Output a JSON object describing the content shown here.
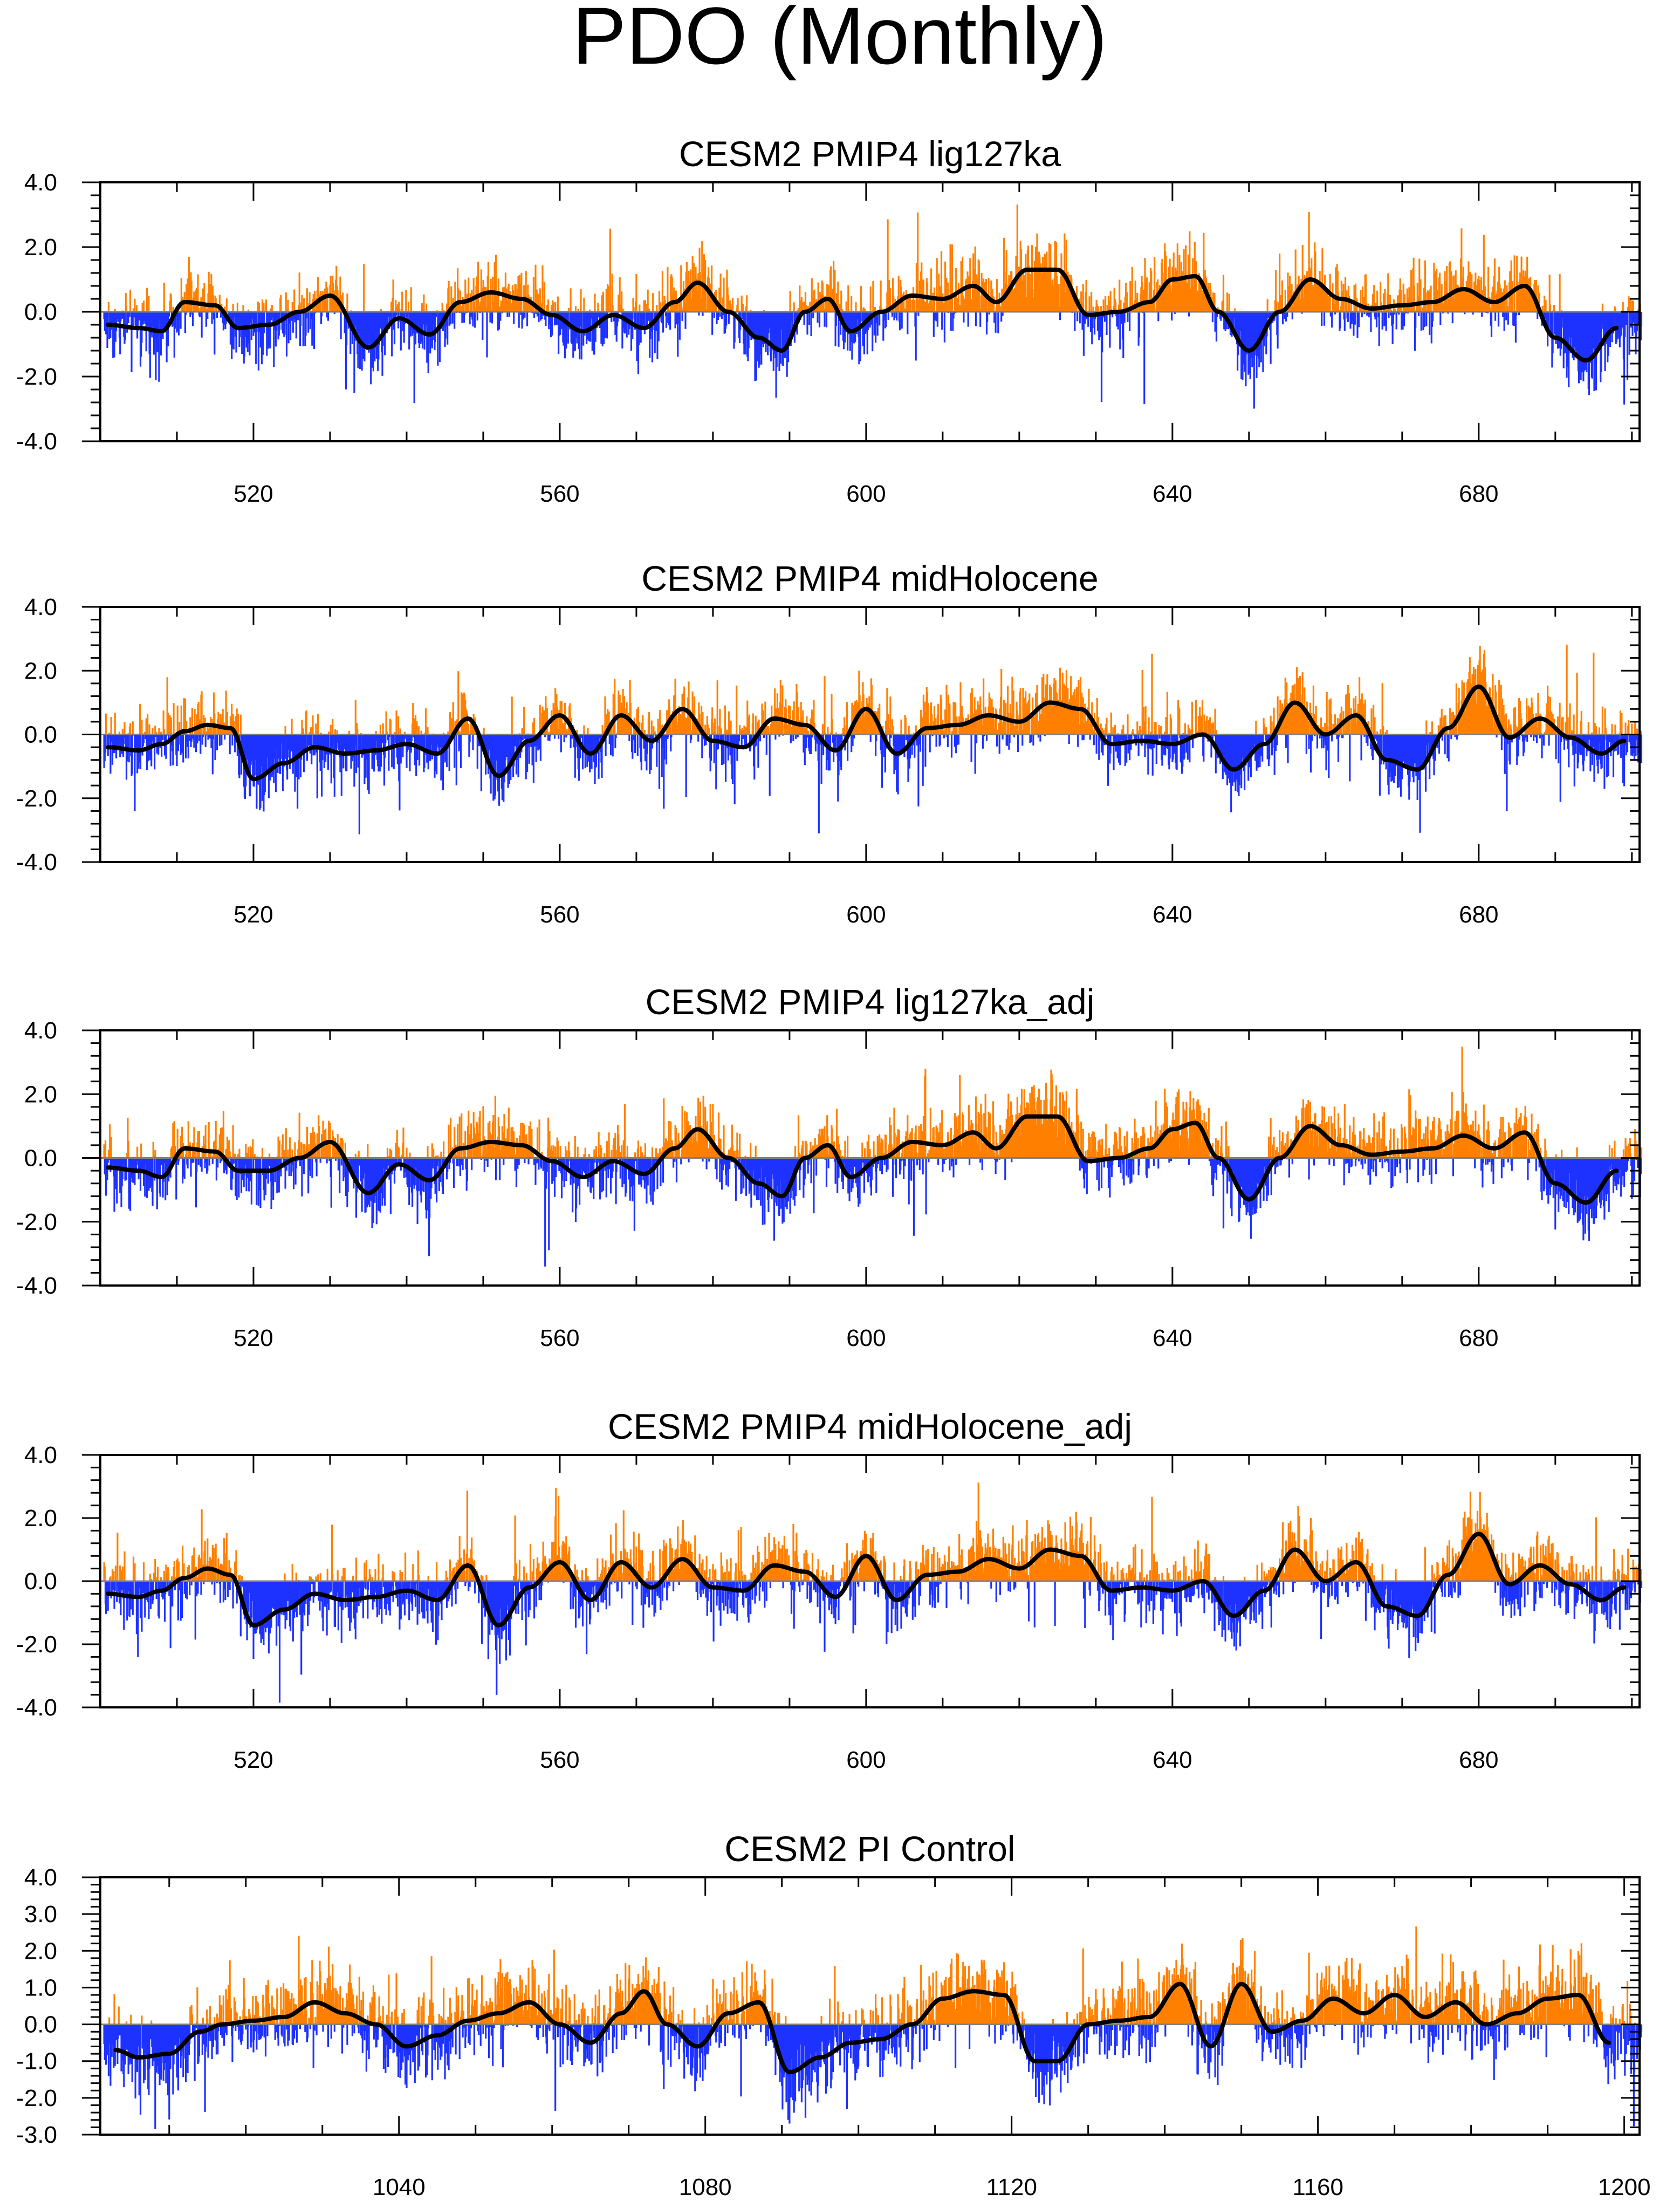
{
  "title": "PDO (Monthly)",
  "colors": {
    "positive": "#ff8000",
    "negative": "#1e32ff",
    "smooth": "#000000",
    "zero": "#808080"
  },
  "chart_data": [
    {
      "type": "bar",
      "title": "CESM2 PMIP4 lig127ka",
      "xlim": [
        500,
        701
      ],
      "ylim": [
        -4.0,
        4.0
      ],
      "yticks": [
        -4.0,
        -2.0,
        0.0,
        2.0,
        4.0
      ],
      "ytick_labels": [
        "-4.0",
        "-2.0",
        "0.0",
        "2.0",
        "4.0"
      ],
      "xticks": [
        520,
        560,
        600,
        640,
        680
      ],
      "xtick_labels": [
        "520",
        "560",
        "600",
        "640",
        "680"
      ],
      "smoothed_x": [
        501,
        505,
        508,
        511,
        515,
        518,
        522,
        526,
        530,
        535,
        539,
        543,
        547,
        551,
        555,
        559,
        563,
        567,
        571,
        575,
        578,
        582,
        586,
        589,
        592,
        595,
        598,
        602,
        606,
        610,
        614,
        617,
        621,
        625,
        629,
        633,
        637,
        640,
        643,
        646,
        650,
        654,
        658,
        662,
        666,
        670,
        674,
        678,
        682,
        686,
        690,
        694,
        698
      ],
      "smoothed_y": [
        -0.4,
        -0.5,
        -0.6,
        0.3,
        0.2,
        -0.5,
        -0.4,
        0.0,
        0.5,
        -1.1,
        -0.2,
        -0.7,
        0.3,
        0.6,
        0.4,
        -0.1,
        -0.6,
        -0.1,
        -0.5,
        0.3,
        0.9,
        0.0,
        -0.8,
        -1.2,
        0.0,
        0.4,
        -0.6,
        0.0,
        0.5,
        0.4,
        0.8,
        0.3,
        1.3,
        1.3,
        -0.1,
        0.0,
        0.3,
        1.0,
        1.1,
        0.0,
        -1.2,
        0.0,
        1.0,
        0.4,
        0.1,
        0.2,
        0.3,
        0.7,
        0.3,
        0.8,
        -0.8,
        -1.5,
        -0.5
      ]
    },
    {
      "type": "bar",
      "title": "CESM2 PMIP4 midHolocene",
      "xlim": [
        500,
        701
      ],
      "ylim": [
        -4.0,
        4.0
      ],
      "yticks": [
        -4.0,
        -2.0,
        0.0,
        2.0,
        4.0
      ],
      "ytick_labels": [
        "-4.0",
        "-2.0",
        "0.0",
        "2.0",
        "4.0"
      ],
      "xticks": [
        520,
        560,
        600,
        640,
        680
      ],
      "xtick_labels": [
        "520",
        "560",
        "600",
        "640",
        "680"
      ],
      "smoothed_x": [
        501,
        505,
        508,
        511,
        514,
        517,
        520,
        524,
        528,
        532,
        536,
        540,
        544,
        548,
        552,
        556,
        560,
        564,
        568,
        572,
        576,
        580,
        584,
        588,
        592,
        596,
        600,
        604,
        608,
        612,
        616,
        620,
        624,
        628,
        632,
        636,
        640,
        644,
        648,
        652,
        656,
        660,
        664,
        668,
        672,
        676,
        680,
        684,
        688,
        692,
        696,
        699
      ],
      "smoothed_y": [
        -0.4,
        -0.5,
        -0.3,
        0.1,
        0.3,
        0.2,
        -1.4,
        -0.9,
        -0.4,
        -0.6,
        -0.5,
        -0.3,
        -0.6,
        0.5,
        -1.3,
        -0.2,
        0.6,
        -0.6,
        0.6,
        -0.2,
        0.8,
        -0.2,
        -0.4,
        0.5,
        0.3,
        -0.5,
        0.8,
        -0.6,
        0.2,
        0.3,
        0.6,
        0.4,
        1.0,
        0.8,
        -0.3,
        -0.2,
        -0.3,
        0.0,
        -1.1,
        -0.3,
        1.0,
        0.0,
        0.6,
        -0.8,
        -1.1,
        0.2,
        1.5,
        -0.1,
        0.5,
        -0.1,
        -0.6,
        -0.2
      ]
    },
    {
      "type": "bar",
      "title": "CESM2 PMIP4 lig127ka_adj",
      "xlim": [
        500,
        701
      ],
      "ylim": [
        -4.0,
        4.0
      ],
      "yticks": [
        -4.0,
        -2.0,
        0.0,
        2.0,
        4.0
      ],
      "ytick_labels": [
        "-4.0",
        "-2.0",
        "0.0",
        "2.0",
        "4.0"
      ],
      "xticks": [
        520,
        560,
        600,
        640,
        680
      ],
      "xtick_labels": [
        "520",
        "560",
        "600",
        "640",
        "680"
      ],
      "smoothed_x": [
        501,
        505,
        508,
        511,
        515,
        518,
        522,
        526,
        530,
        535,
        539,
        543,
        547,
        551,
        555,
        559,
        563,
        567,
        571,
        575,
        578,
        582,
        586,
        589,
        592,
        595,
        598,
        602,
        606,
        610,
        614,
        617,
        621,
        625,
        629,
        633,
        637,
        640,
        643,
        646,
        650,
        654,
        658,
        662,
        666,
        670,
        674,
        678,
        682,
        686,
        690,
        694,
        698
      ],
      "smoothed_y": [
        -0.3,
        -0.4,
        -0.6,
        0.3,
        0.2,
        -0.4,
        -0.4,
        0.0,
        0.5,
        -1.1,
        -0.2,
        -0.7,
        0.3,
        0.5,
        0.4,
        -0.1,
        -0.6,
        -0.1,
        -0.5,
        0.3,
        0.9,
        0.0,
        -0.8,
        -1.2,
        0.0,
        0.4,
        -0.6,
        0.0,
        0.5,
        0.4,
        0.8,
        0.3,
        1.3,
        1.3,
        -0.1,
        0.0,
        0.3,
        0.9,
        1.1,
        0.0,
        -1.3,
        0.0,
        1.0,
        0.4,
        0.1,
        0.2,
        0.3,
        0.7,
        0.3,
        0.8,
        -0.8,
        -1.4,
        -0.4
      ]
    },
    {
      "type": "bar",
      "title": "CESM2 PMIP4 midHolocene_adj",
      "xlim": [
        500,
        701
      ],
      "ylim": [
        -4.0,
        4.0
      ],
      "yticks": [
        -4.0,
        -2.0,
        0.0,
        2.0,
        4.0
      ],
      "ytick_labels": [
        "-4.0",
        "-2.0",
        "0.0",
        "2.0",
        "4.0"
      ],
      "xticks": [
        520,
        560,
        600,
        640,
        680
      ],
      "xtick_labels": [
        "520",
        "560",
        "600",
        "640",
        "680"
      ],
      "smoothed_x": [
        501,
        505,
        508,
        511,
        514,
        517,
        520,
        524,
        528,
        532,
        536,
        540,
        544,
        548,
        552,
        556,
        560,
        564,
        568,
        572,
        576,
        580,
        584,
        588,
        592,
        596,
        600,
        604,
        608,
        612,
        616,
        620,
        624,
        628,
        632,
        636,
        640,
        644,
        648,
        652,
        656,
        660,
        664,
        668,
        672,
        676,
        680,
        684,
        688,
        692,
        696,
        699
      ],
      "smoothed_y": [
        -0.4,
        -0.5,
        -0.3,
        0.1,
        0.4,
        0.2,
        -1.4,
        -0.9,
        -0.4,
        -0.6,
        -0.5,
        -0.3,
        -0.6,
        0.5,
        -1.4,
        -0.2,
        0.6,
        -0.6,
        0.6,
        -0.2,
        0.7,
        -0.2,
        -0.3,
        0.5,
        0.3,
        -0.5,
        0.8,
        -0.6,
        0.2,
        0.3,
        0.7,
        0.4,
        1.0,
        0.8,
        -0.3,
        -0.2,
        -0.3,
        0.0,
        -1.1,
        -0.3,
        1.0,
        0.0,
        0.6,
        -0.8,
        -1.1,
        0.2,
        1.5,
        -0.1,
        0.5,
        -0.1,
        -0.6,
        -0.2
      ]
    },
    {
      "type": "bar",
      "title": "CESM2 PI Control",
      "xlim": [
        1001,
        1202
      ],
      "ylim": [
        -3.0,
        4.0
      ],
      "yticks": [
        -3.0,
        -2.0,
        -1.0,
        0.0,
        1.0,
        2.0,
        3.0,
        4.0
      ],
      "ytick_labels": [
        "-3.0",
        "-2.0",
        "-1.0",
        "0.0",
        "1.0",
        "2.0",
        "3.0",
        "4.0"
      ],
      "xticks": [
        1040,
        1080,
        1120,
        1160,
        1200
      ],
      "xtick_labels": [
        "1040",
        "1080",
        "1120",
        "1160",
        "1200"
      ],
      "smoothed_x": [
        1003,
        1006,
        1010,
        1014,
        1017,
        1021,
        1025,
        1029,
        1033,
        1037,
        1041,
        1045,
        1049,
        1053,
        1057,
        1061,
        1065,
        1069,
        1072,
        1075,
        1079,
        1083,
        1087,
        1091,
        1095,
        1099,
        1103,
        1107,
        1111,
        1115,
        1119,
        1123,
        1126,
        1130,
        1134,
        1138,
        1142,
        1146,
        1150,
        1154,
        1158,
        1162,
        1166,
        1170,
        1174,
        1178,
        1182,
        1186,
        1190,
        1194,
        1198
      ],
      "smoothed_y": [
        -0.7,
        -0.9,
        -0.8,
        -0.2,
        0.0,
        0.1,
        0.2,
        0.6,
        0.3,
        0.0,
        -0.6,
        -0.3,
        0.1,
        0.3,
        0.6,
        0.0,
        -0.5,
        0.3,
        0.9,
        0.0,
        -0.6,
        0.3,
        0.6,
        -1.3,
        -0.9,
        -0.5,
        -0.4,
        0.0,
        0.7,
        0.9,
        0.8,
        -1.0,
        -1.0,
        0.0,
        0.1,
        0.2,
        1.1,
        -0.6,
        1.1,
        -0.2,
        0.1,
        0.7,
        0.3,
        0.8,
        0.2,
        0.6,
        0.0,
        0.3,
        0.7,
        0.8,
        -0.5
      ]
    }
  ]
}
